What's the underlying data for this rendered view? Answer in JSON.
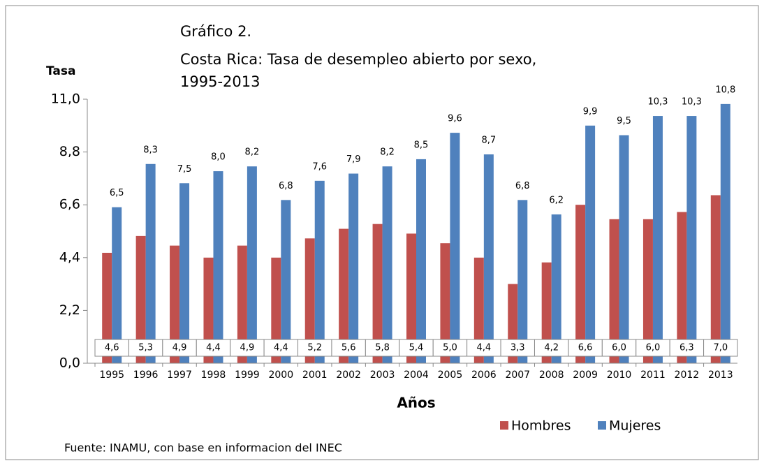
{
  "chart_data": {
    "type": "bar",
    "title": [
      "Gráfico 2.",
      "Costa Rica: Tasa de desempleo abierto por sexo,",
      "1995-2013"
    ],
    "y_label": "Tasa",
    "x_label": "Años",
    "source": "Fuente: INAMU, con base en informacion del INEC",
    "categories": [
      "1995",
      "1996",
      "1997",
      "1998",
      "1999",
      "2000",
      "2001",
      "2002",
      "2003",
      "2004",
      "2005",
      "2006",
      "2007",
      "2008",
      "2009",
      "2010",
      "2011",
      "2012",
      "2013"
    ],
    "series": [
      {
        "name": "Hombres",
        "color": "#c0504d",
        "values": [
          4.6,
          5.3,
          4.9,
          4.4,
          4.9,
          4.4,
          5.2,
          5.6,
          5.8,
          5.4,
          5.0,
          4.4,
          3.3,
          4.2,
          6.6,
          6.0,
          6.0,
          6.3,
          7.0
        ],
        "value_labels": [
          "4,6",
          "5,3",
          "4,9",
          "4,4",
          "4,9",
          "4,4",
          "5,2",
          "5,6",
          "5,8",
          "5,4",
          "5,0",
          "4,4",
          "3,3",
          "4,2",
          "6,6",
          "6,0",
          "6,0",
          "6,3",
          "7,0"
        ]
      },
      {
        "name": "Mujeres",
        "color": "#4f81bd",
        "values": [
          6.5,
          8.3,
          7.5,
          8.0,
          8.2,
          6.8,
          7.6,
          7.9,
          8.2,
          8.5,
          9.6,
          8.7,
          6.8,
          6.2,
          9.9,
          9.5,
          10.3,
          10.3,
          10.8
        ],
        "value_labels": [
          "6,5",
          "8,3",
          "7,5",
          "8,0",
          "8,2",
          "6,8",
          "7,6",
          "7,9",
          "8,2",
          "8,5",
          "9,6",
          "8,7",
          "6,8",
          "6,2",
          "9,9",
          "9,5",
          "10,3",
          "10,3",
          "10,8"
        ]
      }
    ],
    "ylim": [
      0,
      11
    ],
    "yticks": [
      {
        "value": 0,
        "label": "0,0"
      },
      {
        "value": 2.2,
        "label": "2,2"
      },
      {
        "value": 4.4,
        "label": "4,4"
      },
      {
        "value": 6.6,
        "label": "6,6"
      },
      {
        "value": 8.8,
        "label": "8,8"
      },
      {
        "value": 11,
        "label": "11,0"
      }
    ],
    "grid": false,
    "legend": "bottom-right"
  }
}
